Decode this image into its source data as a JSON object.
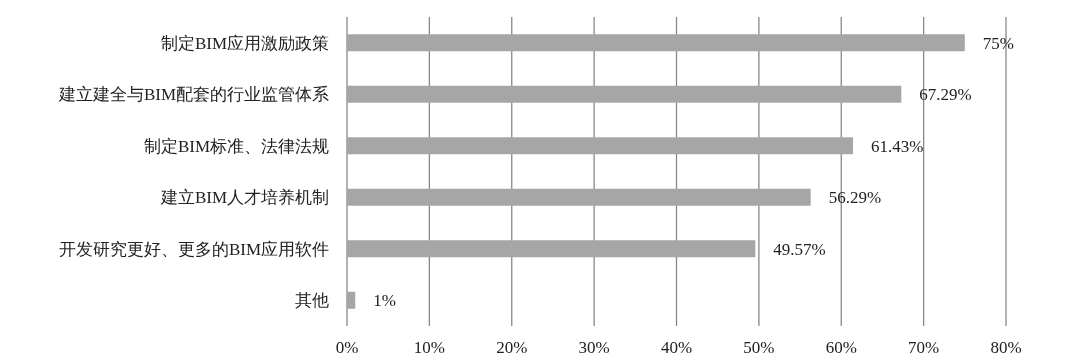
{
  "chart_data": {
    "type": "bar",
    "orientation": "horizontal",
    "categories": [
      "制定BIM应用激励政策",
      "建立建全与BIM配套的行业监管体系",
      "制定BIM标准、法律法规",
      "建立BIM人才培养机制",
      "开发研究更好、更多的BIM应用软件",
      "其他"
    ],
    "values": [
      75,
      67.29,
      61.43,
      56.29,
      49.57,
      1
    ],
    "value_labels": [
      "75%",
      "67.29%",
      "61.43%",
      "56.29%",
      "49.57%",
      "1%"
    ],
    "color": "#a6a6a6",
    "xlim": [
      0,
      80
    ],
    "xticks": [
      {
        "value": 0,
        "label": "0%"
      },
      {
        "value": 10,
        "label": "10%"
      },
      {
        "value": 20,
        "label": "20%"
      },
      {
        "value": 30,
        "label": "30%"
      },
      {
        "value": 40,
        "label": "40%"
      },
      {
        "value": 50,
        "label": "50%"
      },
      {
        "value": 60,
        "label": "60%"
      },
      {
        "value": 70,
        "label": "70%"
      },
      {
        "value": 80,
        "label": "80%"
      }
    ],
    "grid": "x"
  }
}
